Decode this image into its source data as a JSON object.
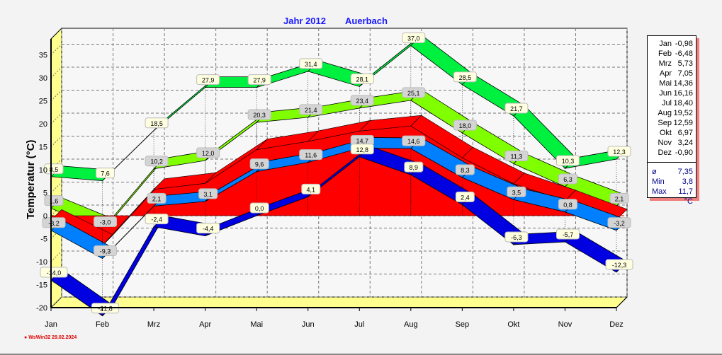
{
  "title": {
    "year": "Jahr  2012",
    "station": "Auerbach"
  },
  "legend": {
    "rows": [
      [
        "Jan",
        "-0,98"
      ],
      [
        "Feb",
        "-6,48"
      ],
      [
        "Mrz",
        "5,73"
      ],
      [
        "Apr",
        "7,05"
      ],
      [
        "Mai",
        "14,36"
      ],
      [
        "Jun",
        "16,16"
      ],
      [
        "Jul",
        "18,40"
      ],
      [
        "Aug",
        "19,52"
      ],
      [
        "Sep",
        "12,59"
      ],
      [
        "Okt",
        "6,97"
      ],
      [
        "Nov",
        "3,24"
      ],
      [
        "Dez",
        "-0,90"
      ]
    ],
    "stats": [
      [
        "ø",
        "7,35"
      ],
      [
        "Min",
        "3,8"
      ],
      [
        "Max",
        "11,7"
      ],
      [
        "",
        "°C"
      ]
    ]
  },
  "credit": "WsWin32  29.02.2024",
  "colors": {
    "abs_max": "#00f040",
    "mean_max": "#80ff00",
    "mean": "#ff0000",
    "mean_min": "#0080ff",
    "abs_min": "#0000e0",
    "wall": "#ffff90"
  },
  "chart_data": {
    "type": "area",
    "title": "Jahr 2012 Auerbach",
    "xlabel": "",
    "ylabel": "Temperatur  (°C)",
    "ylim": [
      -20,
      37
    ],
    "yticks": [
      -20,
      -15,
      -10,
      -5,
      0,
      5,
      10,
      15,
      20,
      25,
      30,
      35
    ],
    "categories": [
      "Jan",
      "Feb",
      "Mrz",
      "Apr",
      "Mai",
      "Jun",
      "Jul",
      "Aug",
      "Sep",
      "Okt",
      "Nov",
      "Dez"
    ],
    "grid": true,
    "series": [
      {
        "name": "Absolutes Maximum",
        "key": "abs_max",
        "values": [
          8.5,
          7.6,
          18.5,
          27.9,
          27.9,
          31.4,
          28.1,
          37.0,
          28.5,
          21.7,
          10.3,
          12.3
        ],
        "labels": [
          "8,5",
          "7,6",
          "18,5",
          "27,9",
          "27,9",
          "31,4",
          "28,1",
          "37,0",
          "28,5",
          "21,7",
          "10,3",
          "12,3"
        ]
      },
      {
        "name": "Mittleres Maximum",
        "key": "mean_max",
        "values": [
          1.6,
          -3.0,
          10.2,
          12.0,
          20.3,
          21.4,
          23.4,
          25.1,
          18.0,
          11.3,
          6.3,
          2.1
        ],
        "labels": [
          "1,6",
          "-3,0",
          "10,2",
          "12,0",
          "20,3",
          "21,4",
          "23,4",
          "25,1",
          "18,0",
          "11,3",
          "6,3",
          "2,1"
        ]
      },
      {
        "name": "Mittel",
        "key": "mean",
        "values": [
          -0.98,
          -6.48,
          5.73,
          7.05,
          14.36,
          16.16,
          18.4,
          19.52,
          12.59,
          6.97,
          3.24,
          -0.9
        ]
      },
      {
        "name": "Mittleres Minimum",
        "key": "mean_min",
        "values": [
          -3.2,
          -9.3,
          2.1,
          3.1,
          9.6,
          11.6,
          14.7,
          14.6,
          8.3,
          3.5,
          0.8,
          -3.2
        ],
        "labels": [
          "-3,2",
          "-9,3",
          "2,1",
          "3,1",
          "9,6",
          "11,6",
          "14,7",
          "14,6",
          "8,3",
          "3,5",
          "0,8",
          "-3,2"
        ]
      },
      {
        "name": "Absolutes Minimum",
        "key": "abs_min",
        "values": [
          -14.0,
          -21.8,
          -2.4,
          -4.4,
          0.0,
          4.1,
          12.8,
          8.9,
          2.4,
          -6.3,
          -5.7,
          -12.3
        ],
        "labels": [
          "-14,0",
          "-21,8",
          "-2,4",
          "-4,4",
          "0,0",
          "4,1",
          "12,8",
          "8,9",
          "2,4",
          "-6,3",
          "-5,7",
          "-12,3"
        ]
      }
    ]
  }
}
